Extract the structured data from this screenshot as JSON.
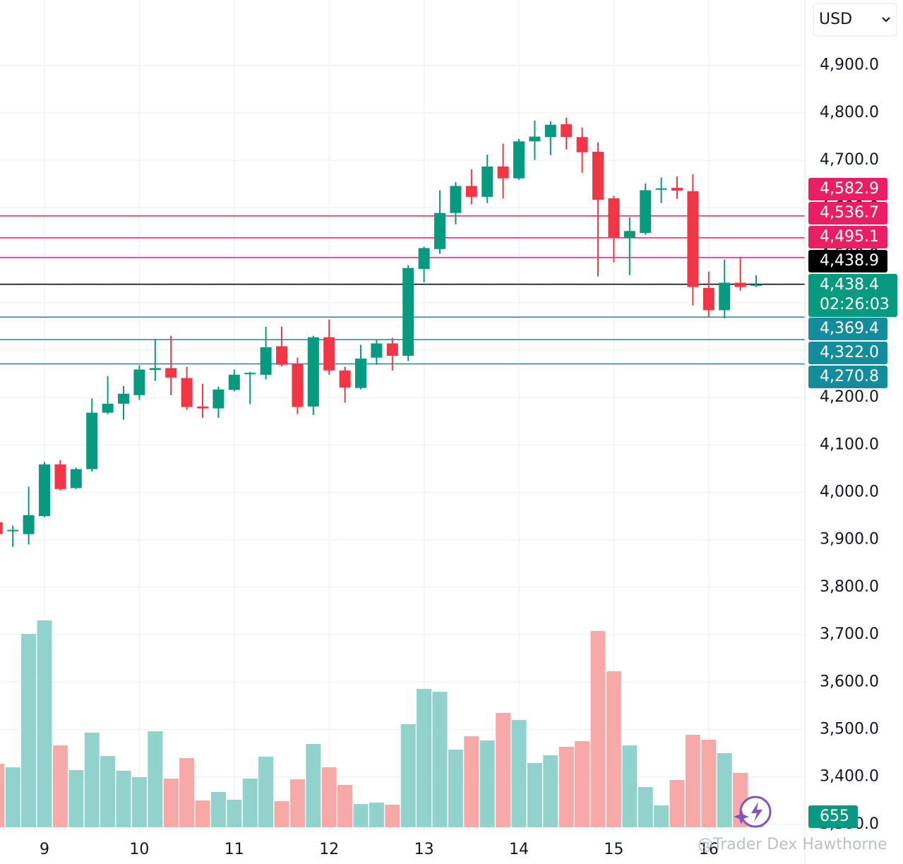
{
  "chart_data": {
    "type": "candlestick",
    "currency": "USD",
    "categories": [
      null,
      null,
      null,
      "9",
      null,
      null,
      null,
      null,
      null,
      "10",
      null,
      null,
      null,
      null,
      null,
      "11",
      null,
      null,
      null,
      null,
      null,
      "12",
      null,
      null,
      null,
      null,
      null,
      "13",
      null,
      null,
      null,
      null,
      null,
      "14",
      null,
      null,
      null,
      null,
      null,
      "15",
      null,
      null,
      null,
      null,
      null,
      "16",
      null,
      null,
      null
    ],
    "open": [
      3937,
      3918,
      3912,
      3950,
      4059,
      4009,
      4049,
      4168,
      4187,
      4205,
      4258,
      4262,
      4241,
      4181,
      4177,
      4216,
      4250,
      4248,
      4308,
      4271,
      4181,
      4327,
      4257,
      4220,
      4284,
      4314,
      4288,
      4471,
      4513,
      4589,
      4646,
      4623,
      4687,
      4662,
      4740,
      4749,
      4776,
      4749,
      4718,
      4620,
      4537,
      4547,
      4638,
      4642,
      4635,
      4431,
      4384,
      4442,
      4436
    ],
    "high": [
      3940,
      3930,
      4012,
      4064,
      4068,
      4052,
      4198,
      4245,
      4224,
      4268,
      4324,
      4330,
      4265,
      4229,
      4223,
      4259,
      4254,
      4349,
      4349,
      4284,
      4330,
      4364,
      4265,
      4311,
      4321,
      4326,
      4479,
      4518,
      4637,
      4654,
      4681,
      4712,
      4735,
      4745,
      4784,
      4782,
      4790,
      4769,
      4738,
      4625,
      4580,
      4651,
      4664,
      4666,
      4671,
      4465,
      4491,
      4494,
      4458
    ],
    "low": [
      3910,
      3885,
      3890,
      3948,
      4004,
      4007,
      4044,
      4165,
      4153,
      4195,
      4235,
      4205,
      4174,
      4157,
      4157,
      4213,
      4186,
      4238,
      4266,
      4165,
      4163,
      4248,
      4189,
      4217,
      4269,
      4257,
      4277,
      4443,
      4503,
      4565,
      4607,
      4610,
      4619,
      4659,
      4701,
      4711,
      4723,
      4674,
      4455,
      4485,
      4458,
      4543,
      4610,
      4619,
      4394,
      4370,
      4367,
      4425,
      4433
    ],
    "close": [
      3912,
      3921,
      3952,
      4059,
      4007,
      4049,
      4168,
      4187,
      4208,
      4259,
      4262,
      4242,
      4180,
      4177,
      4217,
      4248,
      4252,
      4306,
      4269,
      4180,
      4327,
      4257,
      4221,
      4282,
      4314,
      4288,
      4473,
      4515,
      4589,
      4646,
      4623,
      4687,
      4662,
      4740,
      4750,
      4775,
      4749,
      4717,
      4617,
      4538,
      4551,
      4637,
      4641,
      4636,
      4433,
      4384,
      4442,
      4433,
      4438.4
    ],
    "volume": [
      3930,
      3715,
      11970,
      12800,
      5070,
      3540,
      5860,
      4410,
      3500,
      3100,
      5940,
      3015,
      4280,
      1660,
      2185,
      1705,
      3015,
      4370,
      1615,
      2970,
      5155,
      3715,
      2620,
      1440,
      1530,
      1400,
      6380,
      8565,
      8390,
      4805,
      5640,
      5375,
      7080,
      6640,
      3975,
      4455,
      4980,
      5330,
      12150,
      9660,
      5070,
      2490,
      1355,
      2930,
      5725,
      5420,
      4590,
      3365,
      655
    ],
    "up_color": "#089981",
    "down_color": "#f23645",
    "volume_up_color": "#92d2cc",
    "volume_down_color": "#f7a9a7",
    "volume_lim": [
      0,
      51200
    ],
    "ylim": [
      3282,
      5038
    ],
    "yticks": [
      {
        "value": 3300,
        "label": "3,300.0"
      },
      {
        "value": 3400,
        "label": "3,400.0"
      },
      {
        "value": 3500,
        "label": "3,500.0"
      },
      {
        "value": 3600,
        "label": "3,600.0"
      },
      {
        "value": 3700,
        "label": "3,700.0"
      },
      {
        "value": 3800,
        "label": "3,800.0"
      },
      {
        "value": 3900,
        "label": "3,900.0"
      },
      {
        "value": 4000,
        "label": "4,000.0"
      },
      {
        "value": 4100,
        "label": "4,100.0"
      },
      {
        "value": 4200,
        "label": "4,200.0"
      },
      {
        "value": 4300,
        "label": "4,300.0"
      },
      {
        "value": 4400,
        "label": "4,400.0"
      },
      {
        "value": 4500,
        "label": "4,500.0"
      },
      {
        "value": 4600,
        "label": "4,600.0"
      },
      {
        "value": 4700,
        "label": "4,700.0"
      },
      {
        "value": 4800,
        "label": "4,800.0"
      },
      {
        "value": 4900,
        "label": "4,900.0"
      }
    ],
    "grid": true,
    "price_lines": [
      {
        "value": 4582.9,
        "label": "4,582.9",
        "color": "#e91e63"
      },
      {
        "value": 4536.7,
        "label": "4,536.7",
        "color": "#e91e63"
      },
      {
        "value": 4495.1,
        "label": "4,495.1",
        "color": "#e91e63"
      },
      {
        "value": 4438.9,
        "label": "4,438.9",
        "color": "#000000"
      },
      {
        "value": 4369.4,
        "label": "4,369.4",
        "color": "#138d9c"
      },
      {
        "value": 4322.0,
        "label": "4,322.0",
        "color": "#138d9c"
      },
      {
        "value": 4270.8,
        "label": "4,270.8",
        "color": "#138d9c"
      }
    ],
    "last_price": {
      "value": 4438.4,
      "label": "4,438.4",
      "countdown": "02:26:03",
      "color": "#089981"
    },
    "watermark": "@Trader Dex Hawthorne"
  }
}
